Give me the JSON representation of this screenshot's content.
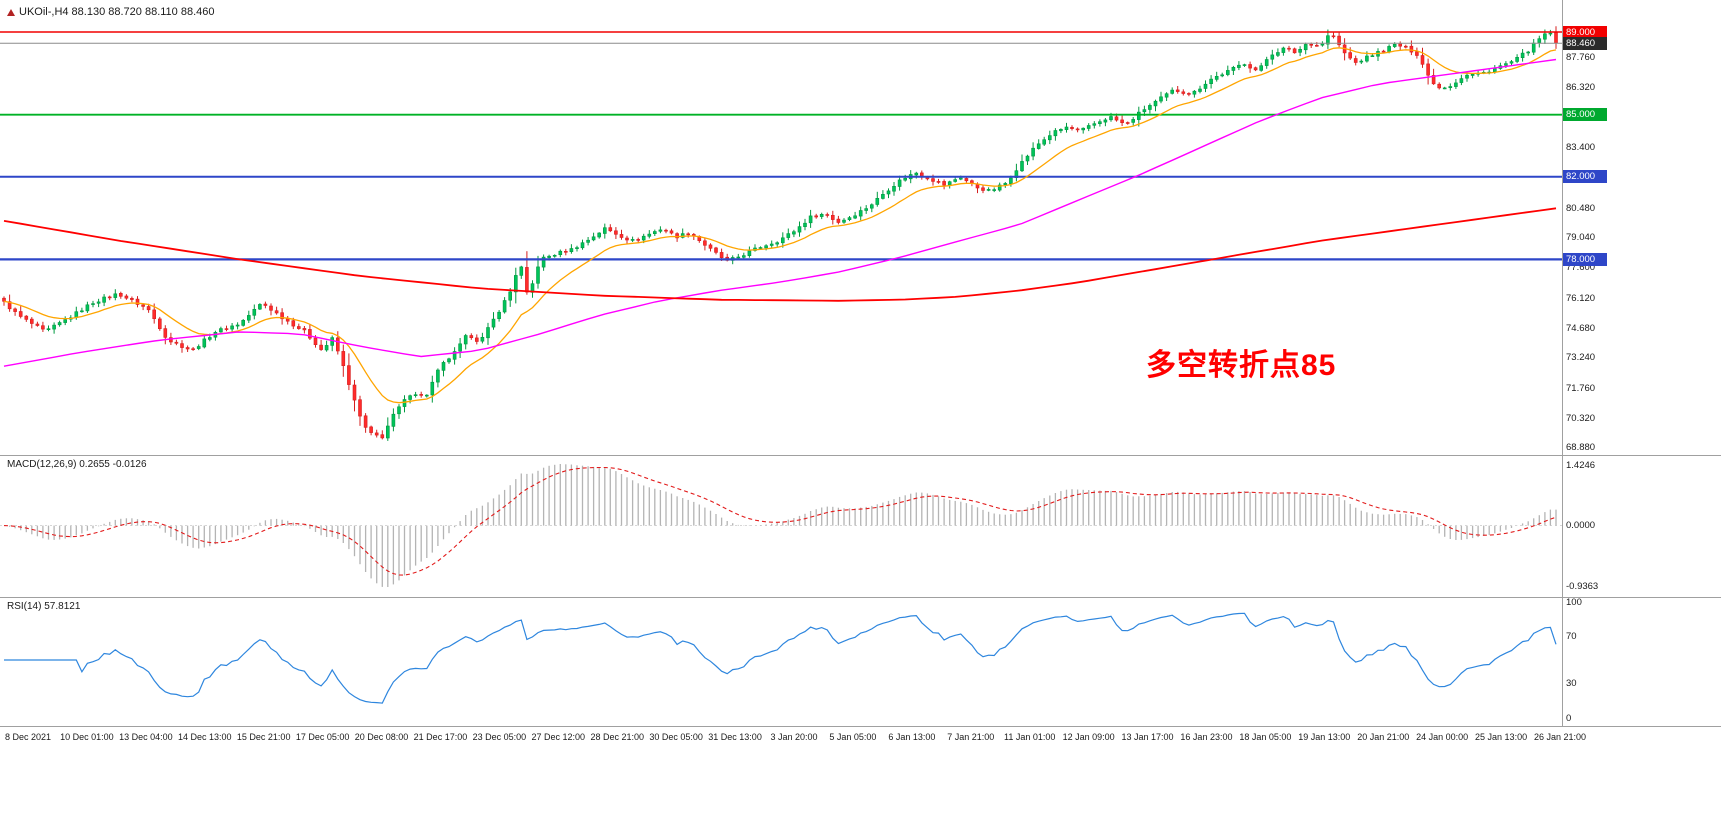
{
  "header": {
    "title": "UKOil-,H4 88.130 88.720 88.110 88.460",
    "symbol": "UKOil-",
    "timeframe": "H4",
    "ohlc": {
      "open": "88.130",
      "high": "88.720",
      "low": "88.110",
      "close": "88.460"
    }
  },
  "colors": {
    "up": "#009a40",
    "up_fill": "#00c35a",
    "down": "#d61f1f",
    "down_fill": "#ff2b2b",
    "ma_fast": "#ffa500",
    "ma_mid": "#ff00ff",
    "ma_slow": "#ff0000",
    "macd_hist": "#b4b4b4",
    "macd_signal": "#e21b1b",
    "rsi_line": "#2e86de",
    "last_price_line": "#8c8c8c",
    "last_price_badge": "#2b2b2b",
    "separator": "#a0a0a0",
    "axis_text": "#1a1a1a",
    "annotation": "#ff0000"
  },
  "chart_data": {
    "type": "candlestick",
    "title": "UKOil-,H4",
    "grid": false,
    "candle_count": 280,
    "last_price": 88.46,
    "annotation": {
      "text": "多空转折点85",
      "color": "#ff0000"
    },
    "y_axis": {
      "top_price": 90.55,
      "bottom_price": 68.54,
      "ticks": [
        87.76,
        86.32,
        83.4,
        80.48,
        79.04,
        77.6,
        76.12,
        74.68,
        73.24,
        71.76,
        70.32,
        68.88
      ]
    },
    "hlines": [
      {
        "price": 89.0,
        "label": "89.000",
        "color": "#f20000",
        "badge": "#f20000",
        "width": 1.4
      },
      {
        "price": 85.0,
        "label": "85.000",
        "color": "#00b226",
        "badge": "#00a92f",
        "width": 1.8
      },
      {
        "price": 82.0,
        "label": "82.000",
        "color": "#2e46c8",
        "badge": "#2e46c8",
        "width": 2
      },
      {
        "price": 78.0,
        "label": "78.000",
        "color": "#2e46c8",
        "badge": "#2e46c8",
        "width": 2.2
      }
    ],
    "close_waypoints": [
      [
        0,
        76.1
      ],
      [
        18,
        75.3
      ],
      [
        45,
        74.5
      ],
      [
        70,
        75.2
      ],
      [
        92,
        75.9
      ],
      [
        118,
        76.35
      ],
      [
        148,
        75.6
      ],
      [
        168,
        74.1
      ],
      [
        192,
        73.6
      ],
      [
        215,
        74.5
      ],
      [
        240,
        74.9
      ],
      [
        262,
        75.9
      ],
      [
        285,
        75.1
      ],
      [
        305,
        74.5
      ],
      [
        322,
        73.6
      ],
      [
        333,
        74.2
      ],
      [
        345,
        72.6
      ],
      [
        358,
        70.6
      ],
      [
        368,
        69.6
      ],
      [
        382,
        69.4
      ],
      [
        395,
        70.6
      ],
      [
        412,
        71.6
      ],
      [
        425,
        71.3
      ],
      [
        440,
        72.8
      ],
      [
        455,
        73.5
      ],
      [
        468,
        74.4
      ],
      [
        480,
        74.0
      ],
      [
        495,
        75.2
      ],
      [
        510,
        76.4
      ],
      [
        520,
        77.9
      ],
      [
        528,
        76.1
      ],
      [
        540,
        78.0
      ],
      [
        558,
        78.3
      ],
      [
        572,
        78.5
      ],
      [
        590,
        79.0
      ],
      [
        605,
        79.5
      ],
      [
        618,
        79.2
      ],
      [
        632,
        78.9
      ],
      [
        648,
        79.2
      ],
      [
        662,
        79.5
      ],
      [
        676,
        79.1
      ],
      [
        690,
        79.3
      ],
      [
        710,
        78.5
      ],
      [
        727,
        77.9
      ],
      [
        742,
        78.2
      ],
      [
        760,
        78.6
      ],
      [
        778,
        78.9
      ],
      [
        795,
        79.4
      ],
      [
        812,
        80.1
      ],
      [
        825,
        80.2
      ],
      [
        838,
        79.8
      ],
      [
        852,
        80.1
      ],
      [
        870,
        80.6
      ],
      [
        886,
        81.3
      ],
      [
        902,
        81.9
      ],
      [
        916,
        82.2
      ],
      [
        930,
        81.9
      ],
      [
        945,
        81.6
      ],
      [
        960,
        82.0
      ],
      [
        976,
        81.5
      ],
      [
        990,
        81.3
      ],
      [
        1006,
        81.7
      ],
      [
        1020,
        82.6
      ],
      [
        1036,
        83.5
      ],
      [
        1052,
        84.1
      ],
      [
        1066,
        84.4
      ],
      [
        1080,
        84.2
      ],
      [
        1096,
        84.6
      ],
      [
        1110,
        84.9
      ],
      [
        1126,
        84.5
      ],
      [
        1142,
        85.2
      ],
      [
        1158,
        85.7
      ],
      [
        1174,
        86.2
      ],
      [
        1192,
        86.0
      ],
      [
        1210,
        86.7
      ],
      [
        1228,
        87.1
      ],
      [
        1244,
        87.5
      ],
      [
        1258,
        87.1
      ],
      [
        1270,
        87.9
      ],
      [
        1284,
        88.2
      ],
      [
        1296,
        88.0
      ],
      [
        1308,
        88.5
      ],
      [
        1320,
        88.3
      ],
      [
        1331,
        89.0
      ],
      [
        1342,
        88.1
      ],
      [
        1355,
        87.5
      ],
      [
        1368,
        87.8
      ],
      [
        1382,
        88.1
      ],
      [
        1396,
        88.4
      ],
      [
        1408,
        88.2
      ],
      [
        1418,
        87.9
      ],
      [
        1428,
        86.9
      ],
      [
        1438,
        86.3
      ],
      [
        1450,
        86.4
      ],
      [
        1465,
        86.9
      ],
      [
        1482,
        87.0
      ],
      [
        1498,
        87.3
      ],
      [
        1514,
        87.6
      ],
      [
        1528,
        88.1
      ],
      [
        1540,
        88.7
      ],
      [
        1550,
        89.0
      ],
      [
        1560,
        88.46
      ]
    ],
    "ma": {
      "fast": {
        "color": "#ffa500",
        "period": 13
      },
      "mid": {
        "color": "#ff00ff",
        "waypoints": [
          [
            0,
            72.8
          ],
          [
            80,
            73.5
          ],
          [
            160,
            74.1
          ],
          [
            240,
            74.5
          ],
          [
            300,
            74.4
          ],
          [
            360,
            73.8
          ],
          [
            420,
            73.3
          ],
          [
            480,
            73.6
          ],
          [
            540,
            74.4
          ],
          [
            600,
            75.3
          ],
          [
            660,
            76.0
          ],
          [
            720,
            76.5
          ],
          [
            780,
            76.9
          ],
          [
            840,
            77.4
          ],
          [
            900,
            78.1
          ],
          [
            960,
            78.9
          ],
          [
            1020,
            79.7
          ],
          [
            1080,
            80.9
          ],
          [
            1140,
            82.1
          ],
          [
            1200,
            83.4
          ],
          [
            1260,
            84.7
          ],
          [
            1320,
            85.8
          ],
          [
            1380,
            86.5
          ],
          [
            1440,
            86.9
          ],
          [
            1500,
            87.3
          ],
          [
            1560,
            87.7
          ]
        ]
      },
      "slow": {
        "color": "#ff0000",
        "waypoints": [
          [
            0,
            79.9
          ],
          [
            120,
            78.9
          ],
          [
            240,
            78.0
          ],
          [
            360,
            77.2
          ],
          [
            480,
            76.6
          ],
          [
            600,
            76.25
          ],
          [
            720,
            76.05
          ],
          [
            840,
            76.0
          ],
          [
            900,
            76.05
          ],
          [
            960,
            76.2
          ],
          [
            1020,
            76.5
          ],
          [
            1080,
            76.9
          ],
          [
            1140,
            77.4
          ],
          [
            1200,
            77.9
          ],
          [
            1260,
            78.4
          ],
          [
            1320,
            78.9
          ],
          [
            1380,
            79.3
          ],
          [
            1440,
            79.7
          ],
          [
            1500,
            80.1
          ],
          [
            1560,
            80.5
          ]
        ]
      }
    },
    "macd": {
      "label": "MACD(12,26,9) 0.2655 -0.0126",
      "params": [
        12,
        26,
        9
      ],
      "value": "0.2655",
      "signal_value": "-0.0126",
      "axis": {
        "max": "1.4246",
        "zero": "0.0000",
        "min": "-0.9363"
      }
    },
    "rsi": {
      "label": "RSI(14) 57.8121",
      "period": 14,
      "value": "57.8121",
      "axis": [
        100,
        70,
        30,
        0
      ]
    },
    "x_labels": [
      "8 Dec 2021",
      "10 Dec 01:00",
      "13 Dec 04:00",
      "14 Dec 13:00",
      "15 Dec 21:00",
      "17 Dec 05:00",
      "20 Dec 08:00",
      "21 Dec 17:00",
      "23 Dec 05:00",
      "27 Dec 12:00",
      "28 Dec 21:00",
      "30 Dec 05:00",
      "31 Dec 13:00",
      "3 Jan 20:00",
      "5 Jan 05:00",
      "6 Jan 13:00",
      "7 Jan 21:00",
      "11 Jan 01:00",
      "12 Jan 09:00",
      "13 Jan 17:00",
      "16 Jan 23:00",
      "18 Jan 05:00",
      "19 Jan 13:00",
      "20 Jan 21:00",
      "24 Jan 00:00",
      "25 Jan 13:00",
      "26 Jan 21:00"
    ]
  }
}
